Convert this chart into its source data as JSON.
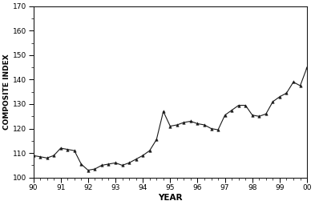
{
  "x": [
    90.0,
    90.25,
    90.5,
    90.75,
    91.0,
    91.25,
    91.5,
    91.75,
    92.0,
    92.25,
    92.5,
    92.75,
    93.0,
    93.25,
    93.5,
    93.75,
    94.0,
    94.25,
    94.5,
    94.75,
    95.0,
    95.25,
    95.5,
    95.75,
    96.0,
    96.25,
    96.5,
    96.75,
    97.0,
    97.25,
    97.5,
    97.75,
    98.0,
    98.25,
    98.5,
    98.75,
    99.0,
    99.25,
    99.5,
    99.75,
    100.0
  ],
  "y": [
    109.0,
    108.5,
    108.0,
    109.0,
    112.0,
    111.5,
    111.0,
    105.5,
    103.0,
    103.5,
    105.0,
    105.5,
    106.0,
    105.0,
    106.0,
    107.5,
    109.0,
    111.0,
    115.5,
    127.0,
    121.0,
    121.5,
    122.5,
    123.0,
    122.0,
    121.5,
    120.0,
    119.5,
    125.5,
    127.5,
    129.5,
    129.5,
    125.5,
    125.0,
    126.0,
    131.0,
    133.0,
    134.5,
    139.0,
    137.5,
    145.0
  ],
  "xlim": [
    90,
    100
  ],
  "ylim": [
    100,
    170
  ],
  "xticks": [
    90,
    91,
    92,
    93,
    94,
    95,
    96,
    97,
    98,
    99,
    100
  ],
  "xticklabels": [
    "90",
    "91",
    "92",
    "93",
    "94",
    "95",
    "96",
    "97",
    "98",
    "99",
    "00"
  ],
  "yticks": [
    100,
    110,
    120,
    130,
    140,
    150,
    160,
    170
  ],
  "xlabel": "YEAR",
  "ylabel": "COMPOSITE INDEX",
  "line_color": "#1a1a1a",
  "marker": "^",
  "marker_size": 2.5,
  "line_width": 0.8,
  "bg_color": "#ffffff"
}
